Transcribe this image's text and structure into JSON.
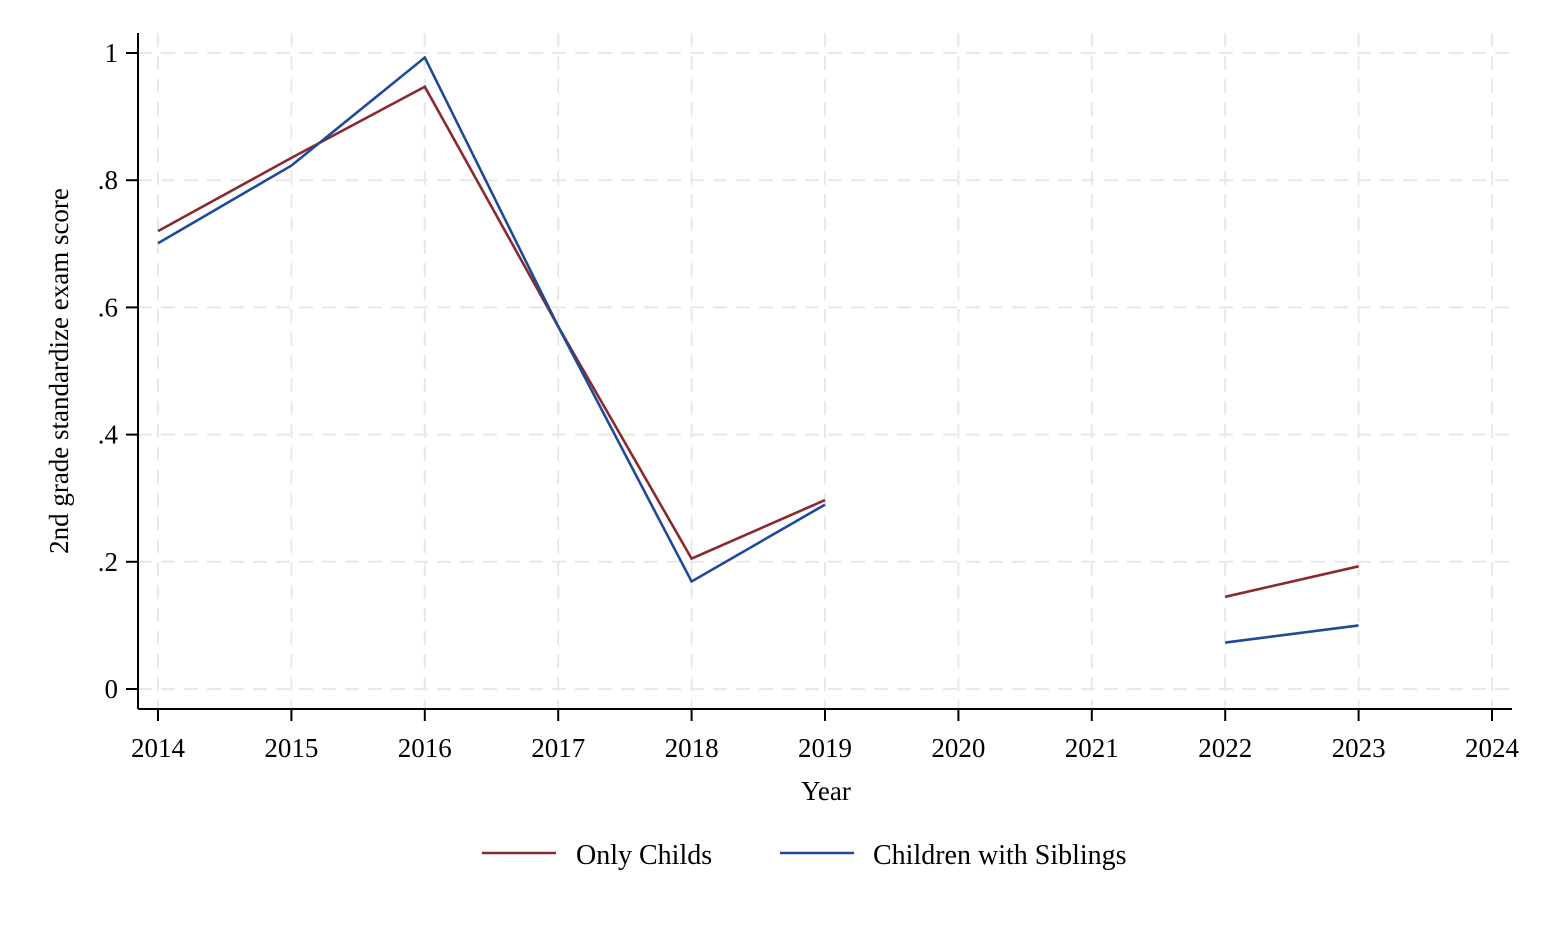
{
  "chart_data": {
    "type": "line",
    "xlabel": "Year",
    "ylabel": "2nd grade standardize exam score",
    "xlim": [
      2014,
      2024
    ],
    "ylim": [
      0,
      1
    ],
    "x_ticks": [
      "2014",
      "2015",
      "2016",
      "2017",
      "2018",
      "2019",
      "2020",
      "2021",
      "2022",
      "2023",
      "2024"
    ],
    "y_ticks": [
      {
        "value": 0,
        "label": "0"
      },
      {
        "value": 0.2,
        "label": ".2"
      },
      {
        "value": 0.4,
        "label": ".4"
      },
      {
        "value": 0.6,
        "label": ".6"
      },
      {
        "value": 0.8,
        "label": ".8"
      },
      {
        "value": 1,
        "label": "1"
      }
    ],
    "grid": true,
    "legend_position": "bottom",
    "series": [
      {
        "name": "Only Childs",
        "color": "#8b2a2e",
        "x": [
          2014,
          2015,
          2016,
          2017,
          2018,
          2019,
          2020,
          2021,
          2022,
          2023
        ],
        "y": [
          0.72,
          0.835,
          0.947,
          0.57,
          0.205,
          0.297,
          null,
          null,
          0.145,
          0.193
        ]
      },
      {
        "name": "Children with Siblings",
        "color": "#1f4a9c",
        "x": [
          2014,
          2015,
          2016,
          2017,
          2018,
          2019,
          2020,
          2021,
          2022,
          2023
        ],
        "y": [
          0.701,
          0.823,
          0.993,
          0.57,
          0.169,
          0.29,
          null,
          null,
          0.073,
          0.1
        ]
      }
    ]
  }
}
